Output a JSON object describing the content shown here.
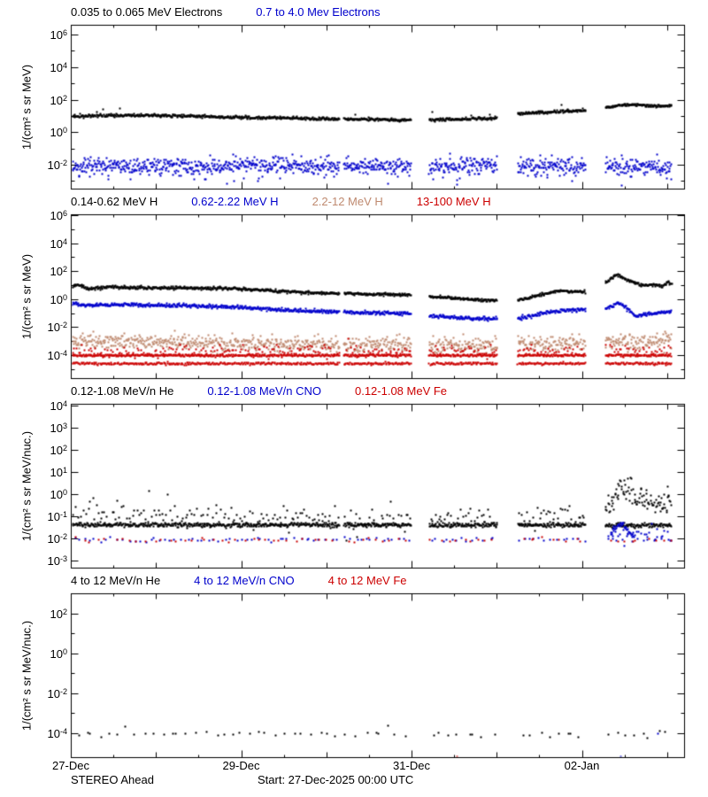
{
  "footer": {
    "left": "STEREO Ahead",
    "center": "Start: 27-Dec-2025 00:00 UTC"
  },
  "colors": {
    "black": "#000000",
    "blue": "#0000cc",
    "tan": "#bf8a70",
    "red": "#cc0000",
    "frame": "#000000",
    "background": "#ffffff"
  },
  "chart_data": {
    "type": "scatter",
    "x_axis": {
      "start": "27-Dec-2025 00:00 UTC",
      "range_days": [
        0,
        7.2
      ],
      "ticks": [
        {
          "t": 0,
          "label": "27-Dec"
        },
        {
          "t": 2,
          "label": "29-Dec"
        },
        {
          "t": 4,
          "label": "31-Dec"
        },
        {
          "t": 6,
          "label": "02-Jan"
        }
      ],
      "minor_tick_step_days": 0.5,
      "data_segments": [
        [
          0,
          3.14
        ],
        [
          3.19,
          3.98
        ],
        [
          4.19,
          4.99
        ],
        [
          5.23,
          6.03
        ],
        [
          6.26,
          7.04
        ]
      ]
    },
    "panels": [
      {
        "title_parts": [
          {
            "text": "0.035 to 0.065 MeV Electrons",
            "color": "#000000"
          },
          {
            "text": "0.7 to 4.0 Mev Electrons",
            "color": "#0000cc"
          }
        ],
        "ylabel": "1/(cm² s sr MeV)",
        "log_top": 6.6,
        "log_bottom": -3.47,
        "yticks_labeled": [
          6,
          4,
          2,
          0,
          -2
        ],
        "yticks_minor": [
          5,
          3,
          1,
          -1,
          -3
        ],
        "series": [
          {
            "name": "0.7 to 4.0 Mev Electrons",
            "color": "#0000cc",
            "style": "scatter",
            "seed": 11,
            "sigma": 0.25,
            "pts_per_day": 170,
            "size": 2,
            "control": [
              [
                0,
                -2.0
              ],
              [
                7.04,
                -2.02
              ]
            ],
            "outliers": {
              "frac": 0.05,
              "offset": -0.55
            }
          },
          {
            "name": "0.035 to 0.065 MeV Electrons",
            "color": "#000000",
            "style": "trace",
            "seed": 12,
            "sigma": 0.045,
            "pts_per_day": 160,
            "size": 2,
            "control": [
              [
                0,
                1.05
              ],
              [
                0.3,
                1.1
              ],
              [
                0.8,
                1.12
              ],
              [
                1.3,
                1.08
              ],
              [
                1.8,
                1.0
              ],
              [
                2.4,
                0.95
              ],
              [
                3.14,
                0.88
              ],
              [
                3.19,
                0.9
              ],
              [
                3.98,
                0.82
              ],
              [
                4.19,
                0.83
              ],
              [
                4.6,
                0.88
              ],
              [
                4.99,
                0.95
              ],
              [
                5.23,
                1.22
              ],
              [
                5.6,
                1.32
              ],
              [
                6.03,
                1.42
              ],
              [
                6.26,
                1.62
              ],
              [
                6.5,
                1.78
              ],
              [
                6.75,
                1.72
              ],
              [
                6.9,
                1.68
              ],
              [
                7.04,
                1.72
              ]
            ],
            "outliers": {
              "frac": 0.01,
              "offset": 0.35
            }
          }
        ]
      },
      {
        "title_parts": [
          {
            "text": "0.14-0.62 MeV H",
            "color": "#000000"
          },
          {
            "text": "0.62-2.22 MeV H",
            "color": "#0000cc"
          },
          {
            "text": "2.2-12 MeV H",
            "color": "#bf8a70"
          },
          {
            "text": "13-100 MeV H",
            "color": "#cc0000"
          }
        ],
        "ylabel": "1/(cm² s sr MeV)",
        "log_top": 6.06,
        "log_bottom": -5.65,
        "yticks_labeled": [
          6,
          4,
          2,
          0,
          -2,
          -4
        ],
        "yticks_minor": [
          5,
          3,
          1,
          -1,
          -3,
          -5
        ],
        "series": [
          {
            "name": "2.2-12 MeV H",
            "color": "#bf8a70",
            "style": "scatter",
            "seed": 21,
            "sigma": 0.28,
            "pts_per_day": 150,
            "size": 2,
            "control": [
              [
                0,
                -2.85
              ],
              [
                1.0,
                -2.95
              ],
              [
                2.0,
                -3.05
              ],
              [
                3.14,
                -3.15
              ],
              [
                3.19,
                -3.15
              ],
              [
                3.98,
                -3.2
              ],
              [
                4.19,
                -3.2
              ],
              [
                4.99,
                -3.2
              ],
              [
                5.23,
                -3.15
              ],
              [
                6.03,
                -3.05
              ],
              [
                6.26,
                -3.0
              ],
              [
                6.6,
                -3.0
              ],
              [
                7.04,
                -2.85
              ]
            ]
          },
          {
            "name": "13-100 MeV H level-1",
            "color": "#cc0000",
            "style": "scatter",
            "seed": 22,
            "sigma": 0.04,
            "pts_per_day": 120,
            "size": 2,
            "control": [
              [
                0,
                -3.93
              ],
              [
                7.04,
                -3.93
              ]
            ]
          },
          {
            "name": "13-100 MeV H level-2",
            "color": "#cc0000",
            "style": "scatter",
            "seed": 23,
            "sigma": 0.04,
            "pts_per_day": 100,
            "size": 2,
            "control": [
              [
                0,
                -4.52
              ],
              [
                7.04,
                -4.52
              ]
            ]
          },
          {
            "name": "13-100 MeV H scatter",
            "color": "#cc0000",
            "style": "scatter",
            "seed": 24,
            "sigma": 0.22,
            "pts_per_day": 45,
            "size": 2,
            "control": [
              [
                0,
                -3.62
              ],
              [
                7.04,
                -3.62
              ]
            ]
          },
          {
            "name": "0.62-2.22 MeV H",
            "color": "#0000cc",
            "style": "trace",
            "seed": 25,
            "sigma": 0.06,
            "pts_per_day": 160,
            "size": 2,
            "control": [
              [
                0,
                -0.2
              ],
              [
                0.15,
                -0.35
              ],
              [
                0.5,
                -0.3
              ],
              [
                1.0,
                -0.35
              ],
              [
                1.5,
                -0.4
              ],
              [
                2.0,
                -0.5
              ],
              [
                2.6,
                -0.75
              ],
              [
                3.14,
                -0.8
              ],
              [
                3.19,
                -0.85
              ],
              [
                3.98,
                -0.95
              ],
              [
                4.19,
                -1.1
              ],
              [
                4.7,
                -1.3
              ],
              [
                4.99,
                -1.3
              ],
              [
                5.23,
                -1.3
              ],
              [
                5.5,
                -0.95
              ],
              [
                5.75,
                -0.72
              ],
              [
                6.03,
                -0.65
              ],
              [
                6.26,
                -0.6
              ],
              [
                6.42,
                -0.15
              ],
              [
                6.55,
                -0.75
              ],
              [
                6.62,
                -1.15
              ],
              [
                6.75,
                -0.95
              ],
              [
                6.9,
                -0.9
              ],
              [
                7.0,
                -0.82
              ],
              [
                7.04,
                -0.8
              ]
            ]
          },
          {
            "name": "0.14-0.62 MeV H",
            "color": "#000000",
            "style": "trace",
            "seed": 26,
            "sigma": 0.05,
            "pts_per_day": 160,
            "size": 2,
            "control": [
              [
                0,
                1.0
              ],
              [
                0.08,
                1.1
              ],
              [
                0.2,
                0.8
              ],
              [
                0.4,
                0.95
              ],
              [
                0.8,
                0.9
              ],
              [
                1.3,
                0.88
              ],
              [
                1.9,
                0.85
              ],
              [
                2.6,
                0.6
              ],
              [
                3.14,
                0.5
              ],
              [
                3.19,
                0.48
              ],
              [
                3.98,
                0.4
              ],
              [
                4.19,
                0.28
              ],
              [
                4.7,
                0.05
              ],
              [
                4.99,
                0.0
              ],
              [
                5.23,
                0.0
              ],
              [
                5.5,
                0.4
              ],
              [
                5.7,
                0.68
              ],
              [
                6.03,
                0.6
              ],
              [
                6.26,
                1.25
              ],
              [
                6.4,
                1.85
              ],
              [
                6.55,
                1.35
              ],
              [
                6.7,
                1.1
              ],
              [
                6.85,
                1.1
              ],
              [
                6.92,
                1.0
              ],
              [
                7.0,
                1.35
              ],
              [
                7.04,
                1.15
              ]
            ]
          }
        ]
      },
      {
        "title_parts": [
          {
            "text": "0.12-1.08 MeV/n He",
            "color": "#000000"
          },
          {
            "text": "0.12-1.08 MeV/n CNO",
            "color": "#0000cc"
          },
          {
            "text": "0.12-1.08 MeV Fe",
            "color": "#cc0000"
          }
        ],
        "ylabel": "1/(cm² s sr MeV/nuc.)",
        "log_top": 4.08,
        "log_bottom": -3.32,
        "yticks_labeled": [
          4,
          3,
          2,
          1,
          0,
          -1,
          -2,
          -3
        ],
        "yticks_minor": [],
        "series": [
          {
            "name": "He dense band",
            "color": "#000000",
            "style": "scatter",
            "seed": 31,
            "sigma": 0.05,
            "pts_per_day": 140,
            "size": 2,
            "control": [
              [
                0,
                -1.32
              ],
              [
                7.04,
                -1.35
              ]
            ]
          },
          {
            "name": "He scatter",
            "color": "#000000",
            "style": "scatter",
            "seed": 32,
            "sigma": 0.3,
            "pts_per_day": 40,
            "size": 2,
            "control": [
              [
                0,
                -0.85
              ],
              [
                0.6,
                -0.8
              ],
              [
                1.2,
                -0.9
              ],
              [
                1.8,
                -1.0
              ],
              [
                2.6,
                -1.05
              ],
              [
                3.14,
                -1.1
              ],
              [
                3.19,
                -1.1
              ],
              [
                3.98,
                -1.15
              ],
              [
                4.19,
                -1.15
              ],
              [
                4.99,
                -1.15
              ],
              [
                5.23,
                -1.1
              ],
              [
                6.03,
                -1.05
              ],
              [
                6.26,
                -0.5
              ],
              [
                6.4,
                -0.05
              ],
              [
                6.5,
                0.25
              ],
              [
                6.6,
                0.0
              ],
              [
                6.7,
                -0.2
              ],
              [
                6.85,
                -0.3
              ],
              [
                7.0,
                -0.35
              ],
              [
                7.04,
                -0.25
              ]
            ],
            "outliers": {
              "frac": 0.04,
              "offset": 0.35
            }
          },
          {
            "name": "He event enhancement",
            "color": "#000000",
            "style": "scatter",
            "seed": 33,
            "sigma": 0.28,
            "pts_per_day": 90,
            "size": 2,
            "segments": [
              [
                6.26,
                7.04
              ]
            ],
            "control": [
              [
                6.26,
                -0.6
              ],
              [
                6.35,
                -0.15
              ],
              [
                6.45,
                0.2
              ],
              [
                6.55,
                0.05
              ],
              [
                6.65,
                -0.2
              ],
              [
                6.8,
                -0.3
              ],
              [
                7.0,
                -0.4
              ],
              [
                7.04,
                -0.3
              ]
            ],
            "outliers": {
              "frac": 0.05,
              "offset": 0.3
            }
          },
          {
            "name": "CNO dots",
            "color": "#0000cc",
            "style": "scatter",
            "seed": 34,
            "sigma": 0.05,
            "pts_per_day": 16,
            "size": 2,
            "control": [
              [
                0,
                -2.0
              ],
              [
                7.04,
                -2.0
              ]
            ]
          },
          {
            "name": "CNO event scatter",
            "color": "#0000cc",
            "style": "scatter",
            "seed": 35,
            "sigma": 0.18,
            "pts_per_day": 40,
            "size": 2,
            "segments": [
              [
                6.3,
                7.04
              ]
            ],
            "control": [
              [
                6.3,
                -1.8
              ],
              [
                7.04,
                -1.8
              ]
            ]
          },
          {
            "name": "CNO event bump",
            "color": "#0000cc",
            "style": "scatter",
            "seed": 36,
            "sigma": 0.07,
            "pts_per_day": 150,
            "size": 2,
            "segments": [
              [
                6.32,
                6.6
              ]
            ],
            "control": [
              [
                6.32,
                -1.8
              ],
              [
                6.4,
                -1.4
              ],
              [
                6.45,
                -1.25
              ],
              [
                6.5,
                -1.45
              ],
              [
                6.6,
                -1.8
              ]
            ]
          },
          {
            "name": "Fe dots",
            "color": "#cc0000",
            "style": "scatter",
            "seed": 37,
            "sigma": 0.05,
            "pts_per_day": 11,
            "size": 2,
            "control": [
              [
                0,
                -2.03
              ],
              [
                7.04,
                -2.03
              ]
            ]
          }
        ]
      },
      {
        "title_parts": [
          {
            "text": "4 to 12 MeV/n He",
            "color": "#000000"
          },
          {
            "text": "4 to 12 MeV/n CNO",
            "color": "#0000cc"
          },
          {
            "text": "4 to 12 MeV Fe",
            "color": "#cc0000"
          }
        ],
        "ylabel": "1/(cm² s sr MeV/nuc.)",
        "log_top": 3.02,
        "log_bottom": -5.2,
        "yticks_labeled": [
          2,
          0,
          -2,
          -4
        ],
        "yticks_minor": [
          1,
          -1,
          -3
        ],
        "series": [
          {
            "name": "He dots",
            "color": "#000000",
            "style": "scatter",
            "seed": 41,
            "sigma": 0.07,
            "pts_per_day": 10,
            "size": 2,
            "control": [
              [
                0,
                -4.0
              ],
              [
                7.04,
                -4.0
              ]
            ],
            "outliers": {
              "frac": 0.07,
              "offset": 0.3
            }
          },
          {
            "name": "CNO points",
            "color": "#0000cc",
            "style": "points",
            "size": 2,
            "points": [
              [
                6.44,
                -5.1
              ],
              [
                6.88,
                -3.95
              ]
            ]
          },
          {
            "name": "Fe points",
            "color": "#cc0000",
            "style": "points",
            "size": 2,
            "points": [
              [
                4.52,
                -5.1
              ]
            ]
          }
        ]
      }
    ]
  }
}
